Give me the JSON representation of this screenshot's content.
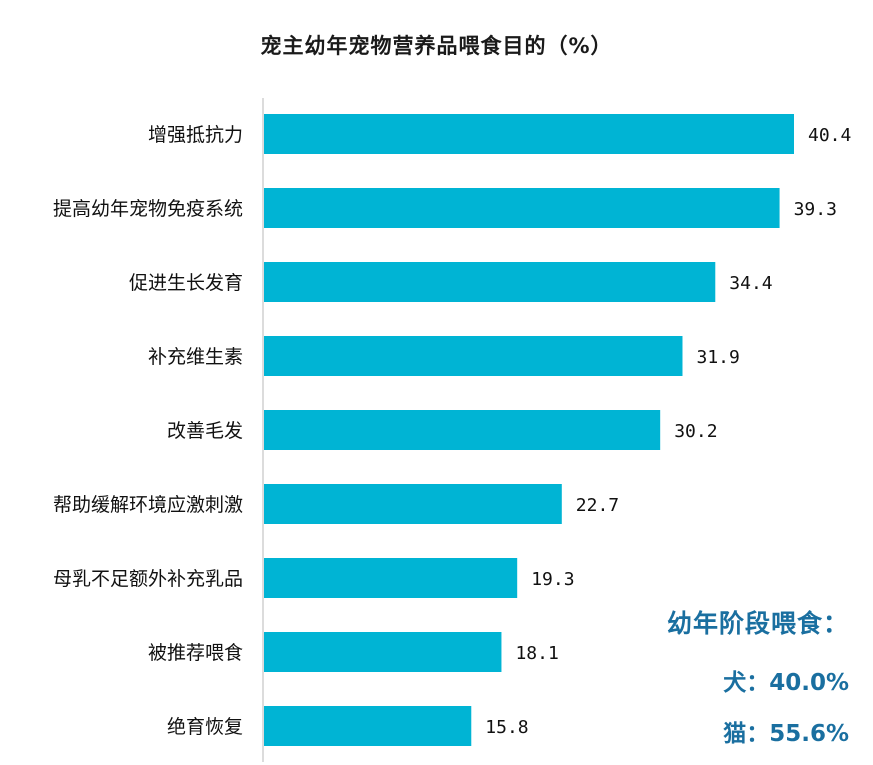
{
  "chart_data": {
    "type": "bar",
    "orientation": "horizontal",
    "title": "宠主幼年宠物营养品喂食目的（%）",
    "categories": [
      "增强抵抗力",
      "提高幼年宠物免疫系统",
      "促进生长发育",
      "补充维生素",
      "改善毛发",
      "帮助缓解环境应激刺激",
      "母乳不足额外补充乳品",
      "被推荐喂食",
      "绝育恢复"
    ],
    "values": [
      40.4,
      39.3,
      34.4,
      31.9,
      30.2,
      22.7,
      19.3,
      18.1,
      15.8
    ],
    "value_labels": [
      "40.4",
      "39.3",
      "34.4",
      "31.9",
      "30.2",
      "22.7",
      "19.3",
      "18.1",
      "15.8"
    ],
    "xlim": [
      0,
      45
    ],
    "bar_color": "#00b4d4",
    "grid": false,
    "legend": "none"
  },
  "annotation": {
    "title": "幼年阶段喂食：",
    "dog": "犬：40.0%",
    "cat": "猫：55.6%",
    "color": "#1a6fa0"
  }
}
